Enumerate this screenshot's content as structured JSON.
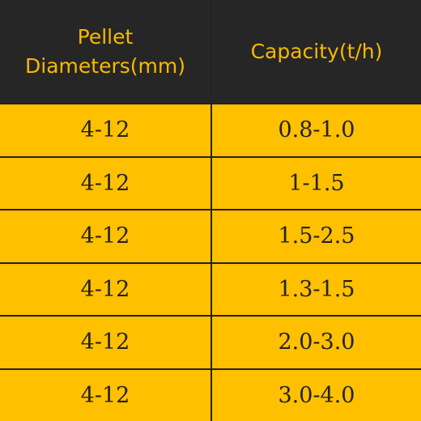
{
  "table": {
    "headers": [
      [
        "Pellet",
        "Diameters(mm)"
      ],
      [
        "Capacity(t/h)"
      ]
    ],
    "rows": [
      [
        "4-12",
        "0.8-1.0"
      ],
      [
        "4-12",
        "1-1.5"
      ],
      [
        "4-12",
        "1.5-2.5"
      ],
      [
        "4-12",
        "1.3-1.5"
      ],
      [
        "4-12",
        "2.0-3.0"
      ],
      [
        "4-12",
        "3.0-4.0"
      ]
    ]
  },
  "colors": {
    "header_bg": "#262626",
    "header_text": "#f7b900",
    "row_bg": "#ffc000",
    "row_text": "#222222",
    "border": "#222222"
  }
}
